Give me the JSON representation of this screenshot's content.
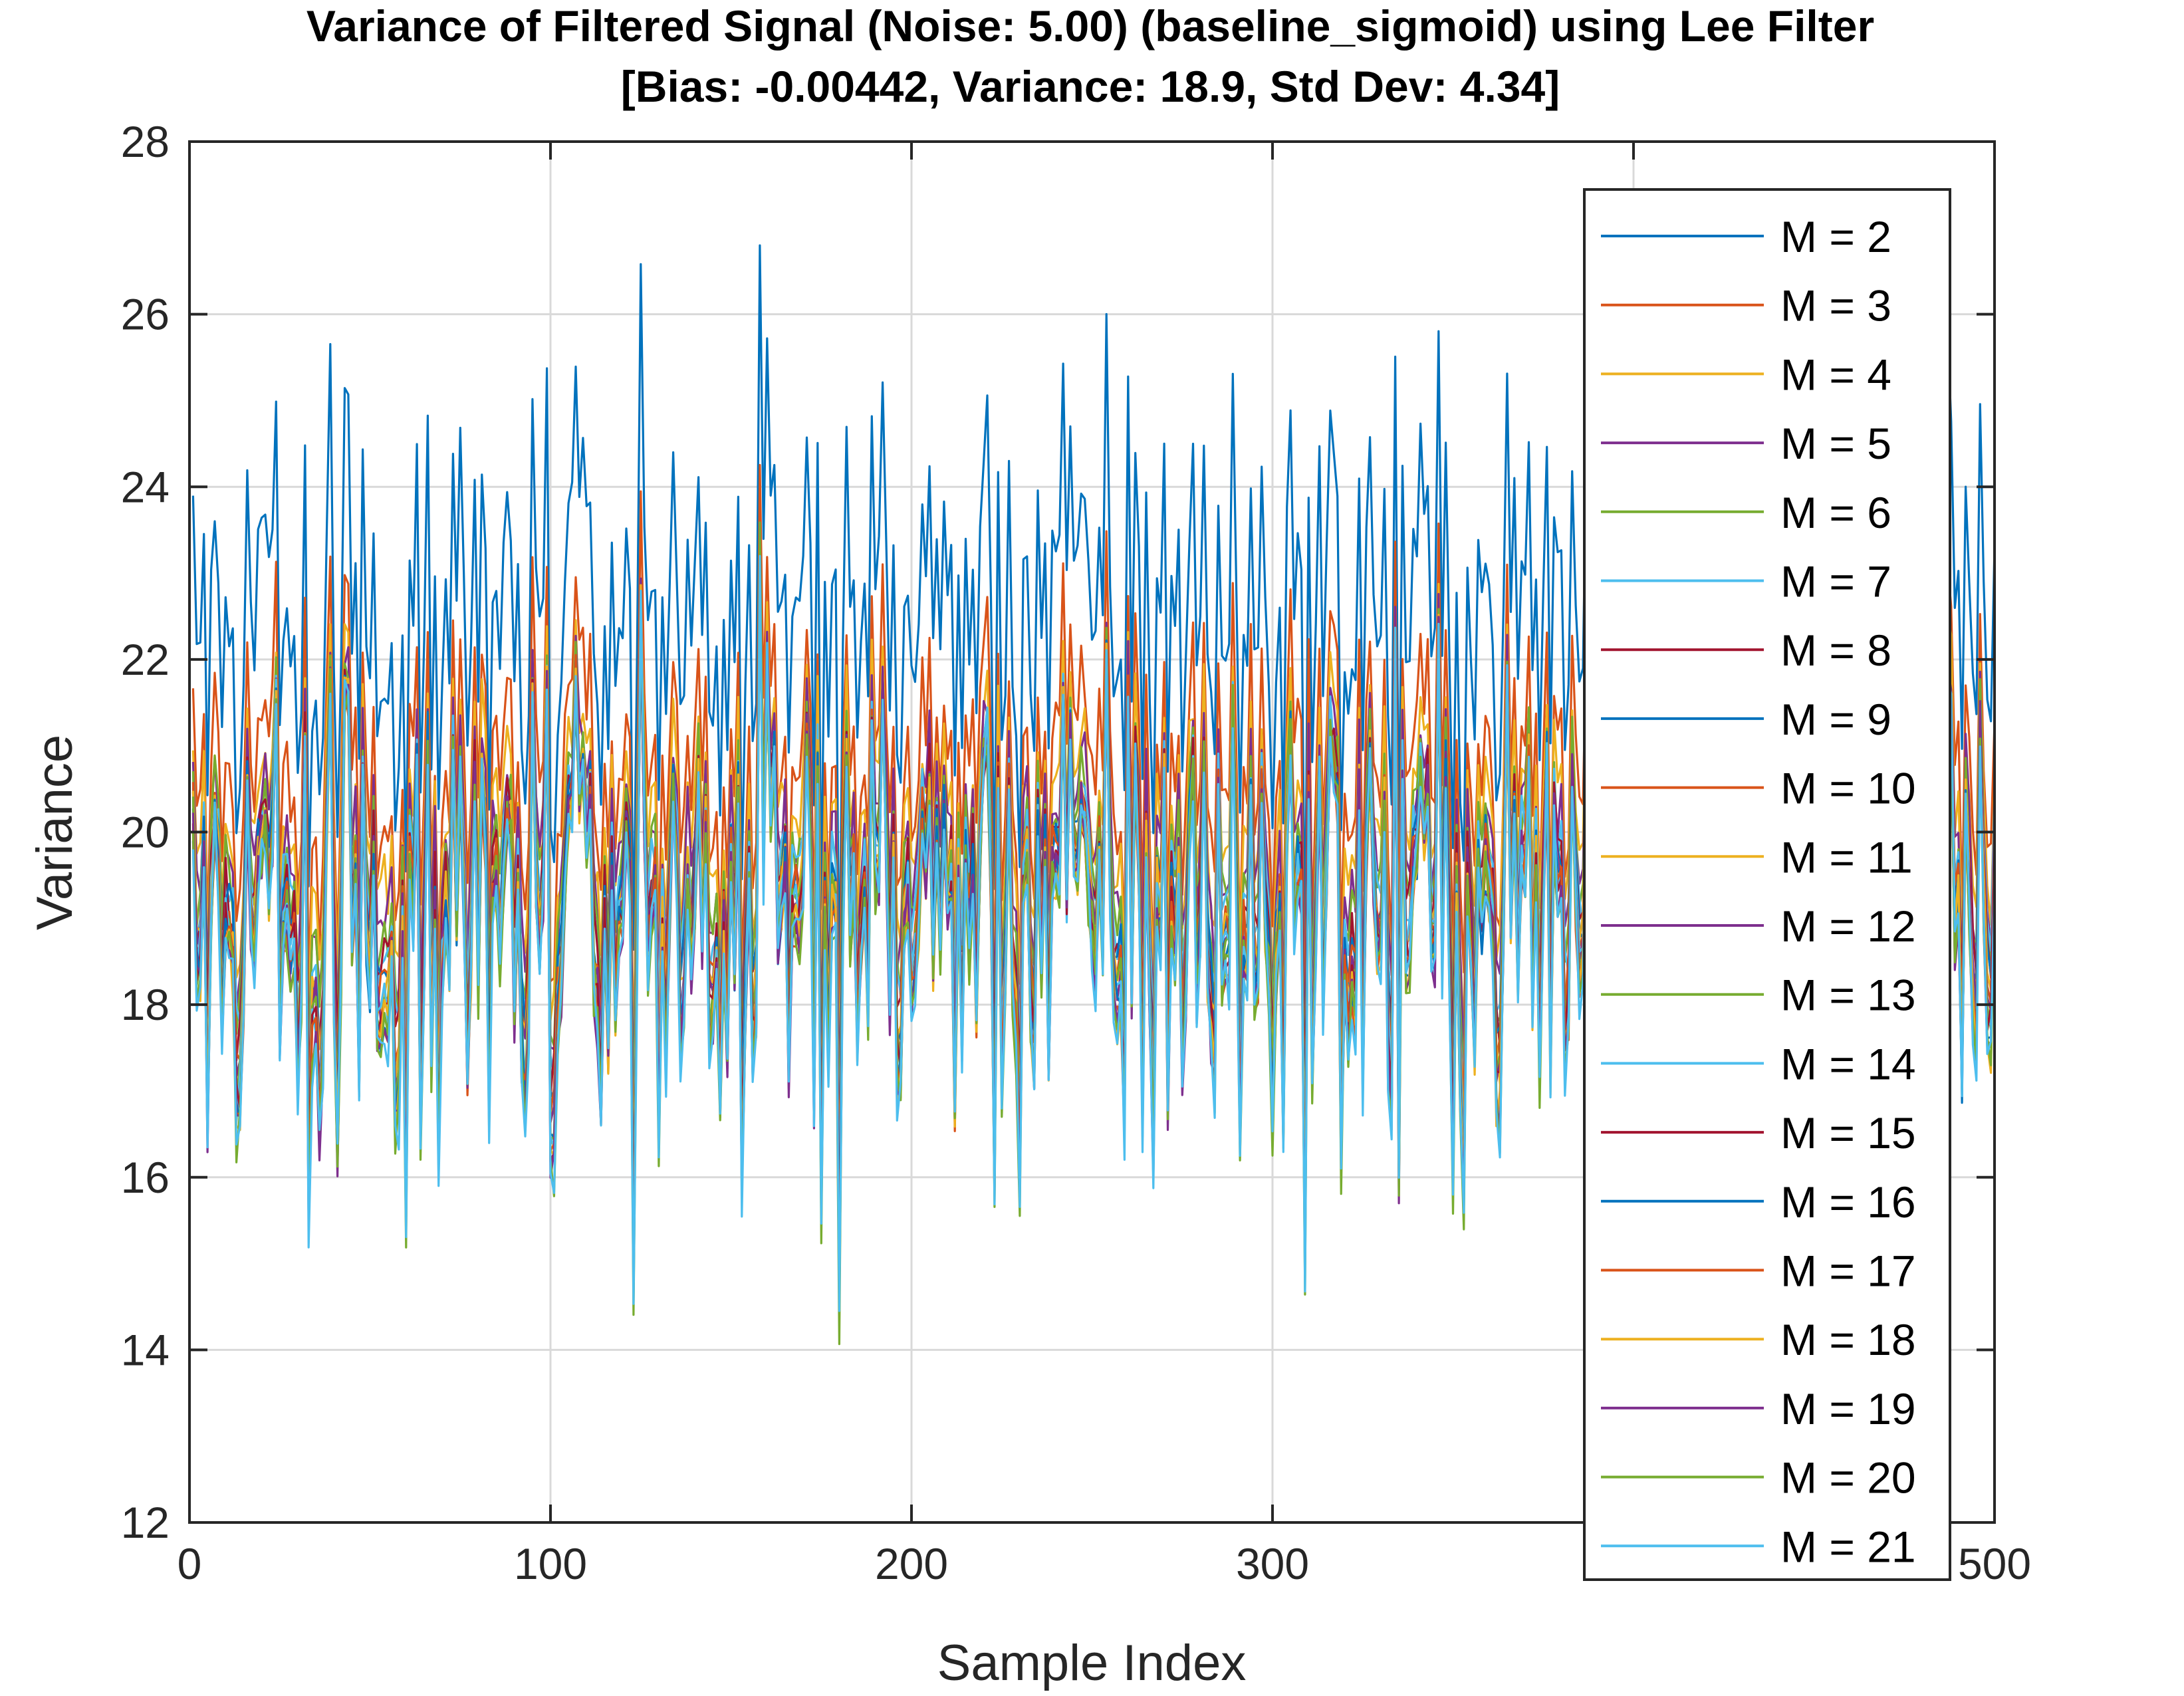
{
  "chart_data": {
    "type": "line",
    "title": "Variance of Filtered Signal (Noise: 5.00) (baseline_sigmoid) using Lee Filter",
    "subtitle": "[Bias: -0.00442, Variance: 18.9, Std Dev: 4.34]",
    "xlabel": "Sample Index",
    "ylabel": "Variance",
    "xlim": [
      0,
      500
    ],
    "ylim": [
      12,
      28
    ],
    "xticks": [
      0,
      100,
      200,
      300,
      400,
      500
    ],
    "yticks": [
      12,
      14,
      16,
      18,
      20,
      22,
      24,
      26,
      28
    ],
    "grid": true,
    "legend_position": "top-right",
    "x": {
      "start": 1,
      "end": 500,
      "step": 1
    },
    "colors": [
      "#0072BD",
      "#D95319",
      "#EDB120",
      "#7E2F8E",
      "#77AC30",
      "#4DBEEE",
      "#A2142F"
    ],
    "series": [
      {
        "name": "M = 2",
        "mean": 22.6,
        "amplitude": 1.05
      },
      {
        "name": "M = 3",
        "mean": 20.8,
        "amplitude": 0.85
      },
      {
        "name": "M = 4",
        "mean": 20.2,
        "amplitude": 0.8
      },
      {
        "name": "M = 5",
        "mean": 19.9,
        "amplitude": 0.8
      },
      {
        "name": "M = 6",
        "mean": 19.7,
        "amplitude": 0.8
      },
      {
        "name": "M = 7",
        "mean": 19.55,
        "amplitude": 0.82
      },
      {
        "name": "M = 8",
        "mean": 19.45,
        "amplitude": 0.84
      },
      {
        "name": "M = 9",
        "mean": 19.35,
        "amplitude": 0.86
      },
      {
        "name": "M = 10",
        "mean": 19.28,
        "amplitude": 0.88
      },
      {
        "name": "M = 11",
        "mean": 19.22,
        "amplitude": 0.9
      },
      {
        "name": "M = 12",
        "mean": 19.16,
        "amplitude": 0.92
      },
      {
        "name": "M = 13",
        "mean": 19.1,
        "amplitude": 0.94
      },
      {
        "name": "M = 14",
        "mean": 19.05,
        "amplitude": 0.96
      },
      {
        "name": "M = 15",
        "mean": 19.0,
        "amplitude": 0.98
      },
      {
        "name": "M = 16",
        "mean": 18.96,
        "amplitude": 1.0
      },
      {
        "name": "M = 17",
        "mean": 18.92,
        "amplitude": 1.02
      },
      {
        "name": "M = 18",
        "mean": 18.88,
        "amplitude": 1.04
      },
      {
        "name": "M = 19",
        "mean": 18.85,
        "amplitude": 1.06
      },
      {
        "name": "M = 20",
        "mean": 18.82,
        "amplitude": 1.08
      },
      {
        "name": "M = 21",
        "mean": 18.8,
        "amplitude": 1.1
      }
    ]
  }
}
